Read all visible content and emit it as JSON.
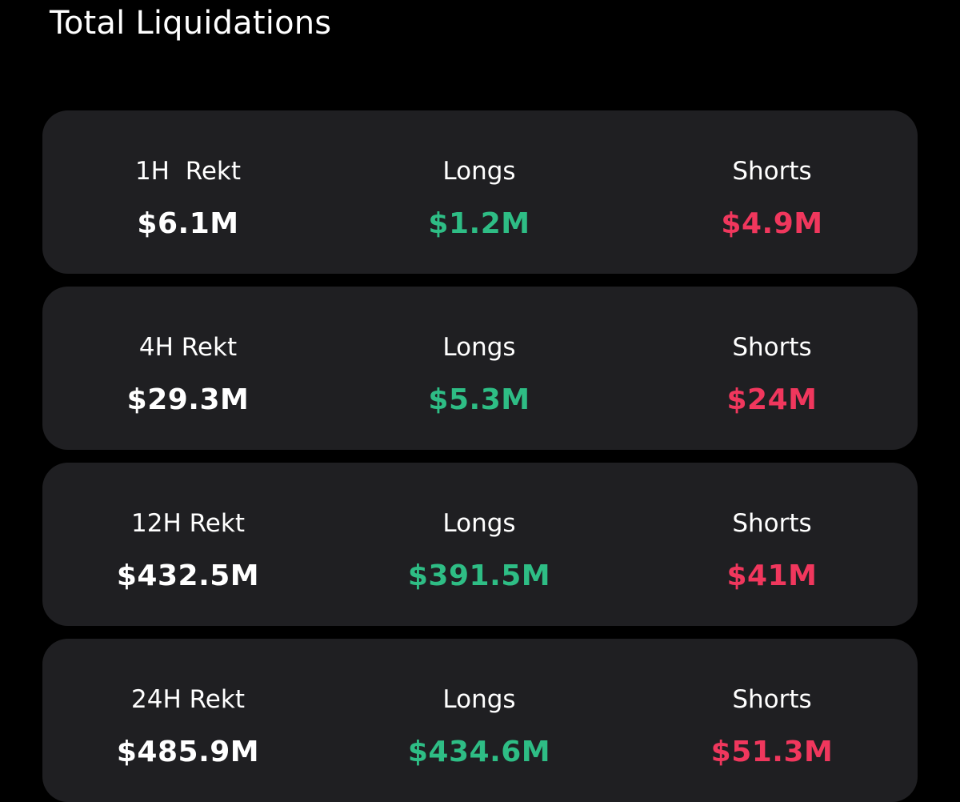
{
  "title": "Total Liquidations",
  "colors": {
    "background": "#000000",
    "card": "#1f1f22",
    "longs": "#2ebd85",
    "shorts": "#f0375d",
    "text": "#ffffff"
  },
  "cards": [
    {
      "period_label": "1H  Rekt",
      "total": "$6.1M",
      "longs_label": "Longs",
      "longs": "$1.2M",
      "shorts_label": "Shorts",
      "shorts": "$4.9M"
    },
    {
      "period_label": "4H Rekt",
      "total": "$29.3M",
      "longs_label": "Longs",
      "longs": "$5.3M",
      "shorts_label": "Shorts",
      "shorts": "$24M"
    },
    {
      "period_label": "12H Rekt",
      "total": "$432.5M",
      "longs_label": "Longs",
      "longs": "$391.5M",
      "shorts_label": "Shorts",
      "shorts": "$41M"
    },
    {
      "period_label": "24H Rekt",
      "total": "$485.9M",
      "longs_label": "Longs",
      "longs": "$434.6M",
      "shorts_label": "Shorts",
      "shorts": "$51.3M"
    }
  ]
}
